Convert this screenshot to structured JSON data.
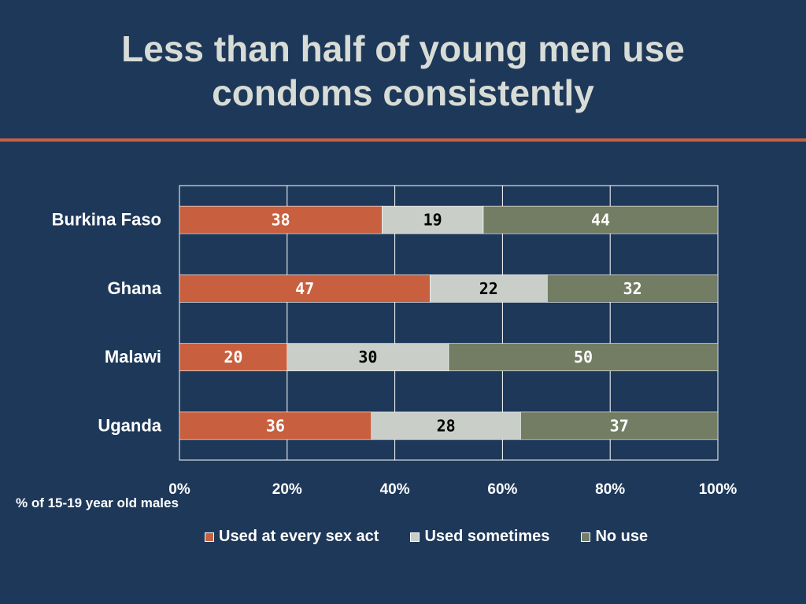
{
  "slide": {
    "title": "Less than half of young men use condoms consistently"
  },
  "colors": {
    "background": "#1e3859",
    "accent": "#c8603f",
    "every": "#c8603f",
    "sometimes": "#c9cfc8",
    "none": "#737d63"
  },
  "chart_data": {
    "type": "bar",
    "orientation": "horizontal",
    "stacked": true,
    "categories": [
      "Burkina Faso",
      "Ghana",
      "Malawi",
      "Uganda"
    ],
    "series": [
      {
        "name": "Used at every sex act",
        "values": [
          38,
          47,
          20,
          36
        ]
      },
      {
        "name": "Used sometimes",
        "values": [
          19,
          22,
          30,
          28
        ]
      },
      {
        "name": "No use",
        "values": [
          44,
          32,
          50,
          37
        ]
      }
    ],
    "xlabel": "% of 15-19 year old males",
    "xlim": [
      0,
      100
    ],
    "xticks": [
      "0%",
      "20%",
      "40%",
      "60%",
      "80%",
      "100%"
    ],
    "grid": true,
    "legend_position": "bottom"
  }
}
